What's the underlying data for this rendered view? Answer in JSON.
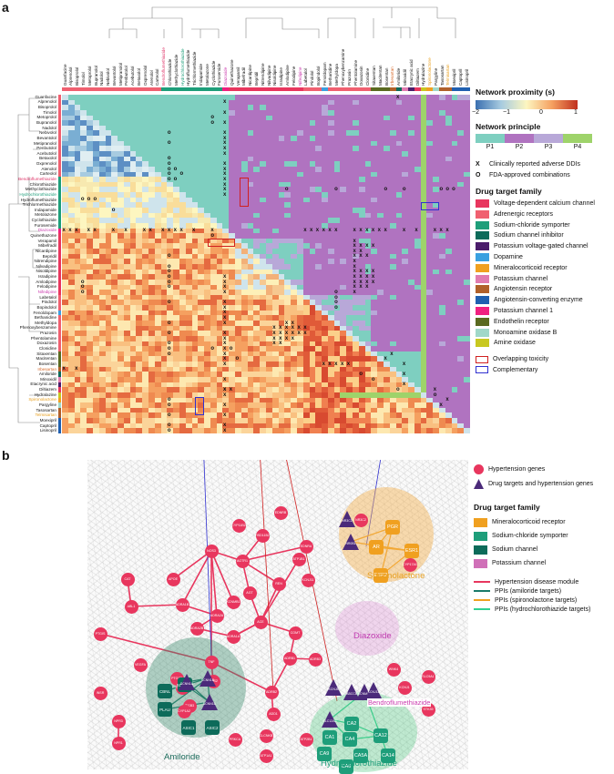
{
  "panel_a": {
    "letter": "a",
    "drugs": [
      "Guanfacine",
      "Alprenolol",
      "Bisoprolol",
      "Timolol",
      "Metoprolol",
      "Bupranolol",
      "Nadolol",
      "Nebivolol",
      "Bevantolol",
      "Metipranolol",
      "Penbutolol",
      "Acebutolol",
      "Betaxolol",
      "Oxprenolol",
      "Atenolol",
      "Carteolol",
      "Bendroflumethiazide",
      "Chlorothiazide",
      "Methyclothiazide",
      "Hydrochlorothiazide",
      "Hydroflumethiazide",
      "Trichlormethiazide",
      "Indapamide",
      "Metolazone",
      "Cyclothiazide",
      "Furosemide",
      "Diazoxide",
      "Quinethazone",
      "Verapamil",
      "Mibefradil",
      "Nicardipine",
      "Bepridil",
      "Nitrendipine",
      "Nilvadipine",
      "Nisoldipine",
      "Isradipine",
      "Amlodipine",
      "Felodipine",
      "Nifedipine",
      "Labetalol",
      "Pindolol",
      "Bopindolol",
      "Fenoldopam",
      "Bethanidine",
      "Methyldopa",
      "Phenoxybenzamine",
      "Prazosin",
      "Phentolamine",
      "Doxazosin",
      "Clonidine",
      "Sitaxentan",
      "Macitentan",
      "Bosentan",
      "Irbesartan",
      "Amiloride",
      "Minoxidil",
      "Etacrynic acid",
      "Diltiazem",
      "Hydralazine",
      "Spironolactone",
      "Pargyline",
      "Tasosartan",
      "Telmisartan",
      "Moexipril",
      "Captopril",
      "Lisinopril"
    ],
    "colored_drugs": {
      "Bendroflumethiazide": "#e0366a",
      "Hydrochlorothiazide": "#1e9e7a",
      "Diazoxide": "#cc3fb0",
      "Nifedipine": "#cc3fb0",
      "Irbesartan": "#d86a2a",
      "Spironolactone": "#e8a020",
      "Telmisartan": "#e8a020"
    },
    "legend": {
      "proximity_title": "Network proximity (s)",
      "proximity_ticks": [
        "−2",
        "−1",
        "0",
        "1"
      ],
      "principle_title": "Network principle",
      "principles": [
        "P1",
        "P2",
        "P3",
        "P4"
      ],
      "principle_colors": [
        "#7ecfc0",
        "#b073c0",
        "#b8a8d8",
        "#9ed36a"
      ],
      "adverse_symbol": "X",
      "adverse_label": "Clinically reported adverse DDIs",
      "approved_symbol": "O",
      "approved_label": "FDA-approved combinations",
      "family_title": "Drug target family",
      "families": [
        {
          "label": "Voltage-dependent calcium channel",
          "color": "#e8365e"
        },
        {
          "label": "Adrenergic receptors",
          "color": "#f06070"
        },
        {
          "label": "Sodium-chloride symporter",
          "color": "#1e9e7a"
        },
        {
          "label": "Sodium channel inhibitor",
          "color": "#0d6b5a"
        },
        {
          "label": "Potassium voltage-gated channel",
          "color": "#4b1d6b"
        },
        {
          "label": "Dopamine",
          "color": "#3aa0e0"
        },
        {
          "label": "Mineralocorticoid receptor",
          "color": "#f0a020"
        },
        {
          "label": "Potassium channel",
          "color": "#e07bb0"
        },
        {
          "label": "Angiotensin receptor",
          "color": "#b0602a"
        },
        {
          "label": "Angiotensin-converting enzyme",
          "color": "#1f5fb0"
        },
        {
          "label": "Potassium channel 1",
          "color": "#f02080"
        },
        {
          "label": "Endothelin receptor",
          "color": "#5a6a20"
        },
        {
          "label": "Monoamine oxidase B",
          "color": "#a0d8c8"
        },
        {
          "label": "Amine oxidase",
          "color": "#c8c820"
        }
      ],
      "overlap_label": "Overlapping toxicity",
      "overlap_color": "#d02020",
      "complementary_label": "Complementary",
      "complementary_color": "#3030d0"
    }
  },
  "panel_b": {
    "letter": "b",
    "legend": {
      "hypertension_genes": "Hypertension genes",
      "drug_targets": "Drug targets and hypertension genes",
      "family_title": "Drug target family",
      "families": [
        {
          "label": "Mineralocorticoid receptor",
          "color": "#f0a020"
        },
        {
          "label": "Sodium-chloride symporter",
          "color": "#1e9e7a"
        },
        {
          "label": "Sodium channel",
          "color": "#0d6b5a"
        },
        {
          "label": "Potassium channel",
          "color": "#d070b8"
        }
      ],
      "lines": [
        {
          "label": "Hypertension disease module",
          "color": "#e8365e"
        },
        {
          "label": "PPIs (amiloride targets)",
          "color": "#1a7a6a"
        },
        {
          "label": "PPIs (spironolactone targets)",
          "color": "#f0a020"
        },
        {
          "label": "PPIs (hydrochlorothiazide targets)",
          "color": "#30d090"
        }
      ]
    },
    "clusters": {
      "spironolactone": "Spironolactone",
      "diazoxide": "Diazoxide",
      "bendroflumethiazide": "Bendroflumethiazide",
      "amiloride": "Amiloride",
      "hydrochlorothiazide": "Hydrochlorothiazide"
    },
    "genes": [
      "NOS3",
      "AGTR1",
      "REN",
      "AGT",
      "ACE",
      "COMT",
      "ABL1",
      "CAT",
      "TNF",
      "ADRB1",
      "ADRB2",
      "APOE",
      "NOS2",
      "ADRA1B",
      "ADRA2A",
      "ADRA2B",
      "ADRA1A",
      "ADD1",
      "PTGS2",
      "NPR1",
      "NPR3",
      "PTGIS",
      "SLC12A3",
      "INSR",
      "HSD11B2",
      "KCNJ11",
      "KCNMB1",
      "CYP11B2",
      "ATP1B1",
      "NR3C2",
      "EDNRA",
      "EDNRB",
      "CYP17A1",
      "ADRB3",
      "STK39",
      "KCNJ1",
      "SLC9A1",
      "ATP2B1",
      "WNK4",
      "CLCNKB",
      "ITGB3",
      "CYP1A2",
      "VEGFA",
      "PRKCA",
      "ATP1A1"
    ],
    "spiro_nodes": [
      "PGR",
      "AR",
      "ESR1",
      "ESR2"
    ],
    "spiro_targets": [
      "NR3C2",
      "NR0B1"
    ],
    "hctz_nodes": [
      "CA1",
      "CA2",
      "CA12",
      "CA4",
      "CA5A",
      "CA14",
      "CA9",
      "CA6"
    ],
    "hctz_targets": [
      "SLC12A3",
      "KCNMA1"
    ],
    "amil_nodes": [
      "CBNL",
      "PLAU",
      "SCNN1G",
      "ASIC1",
      "ASIC2"
    ],
    "amil_targets": [
      "SCNN1A",
      "SCNN1B",
      "SCNN1D"
    ],
    "diaz_targets": [
      "KCNJ8",
      "ABCC8",
      "KCNJ11"
    ]
  }
}
